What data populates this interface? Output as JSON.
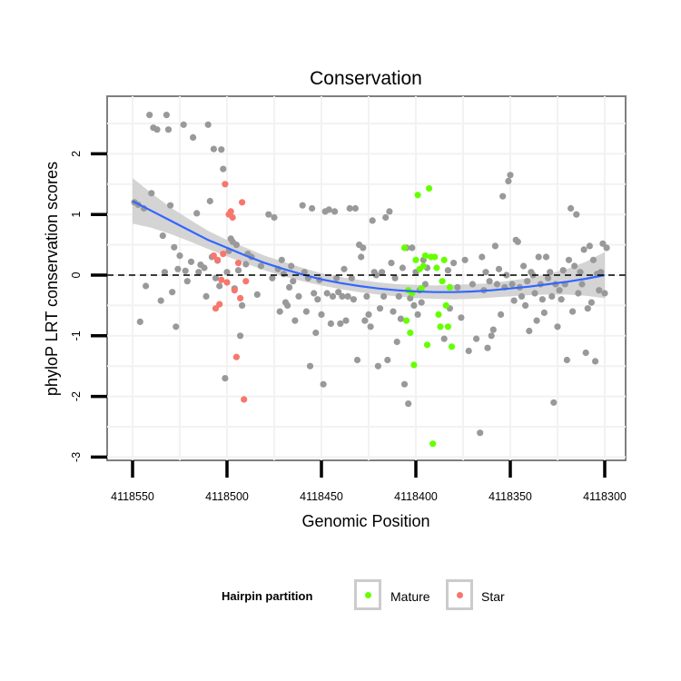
{
  "chart_data": {
    "type": "scatter",
    "title": "Conservation",
    "xlabel": "Genomic Position",
    "ylabel": "phyloP LRT conservation scores",
    "x_reversed": true,
    "xlim": [
      4118300,
      4118550
    ],
    "ylim": [
      -3,
      2.8
    ],
    "x_ticks": [
      4118550,
      4118500,
      4118450,
      4118400,
      4118350,
      4118300
    ],
    "x_tick_labels": [
      "4118550",
      "4118500",
      "4118450",
      "4118400",
      "4118350",
      "4118300"
    ],
    "y_ticks": [
      2,
      1,
      0,
      -1,
      -2,
      -3
    ],
    "y_tick_labels": [
      "2",
      "1",
      "0",
      "-1",
      "-2",
      "-3"
    ],
    "reference_line": {
      "y": 0,
      "style": "dashed"
    },
    "legend": {
      "title": "Hairpin partition",
      "entries": [
        {
          "label": "Mature",
          "color": "#66ff00"
        },
        {
          "label": "Star",
          "color": "#f8766d"
        }
      ]
    },
    "colors": {
      "other": "#999999",
      "mature": "#66ff00",
      "star": "#f8766d",
      "smooth": "#3366ff",
      "band": "#cccccc"
    },
    "smooth": {
      "x": [
        4118550,
        4118540,
        4118530,
        4118520,
        4118510,
        4118500,
        4118490,
        4118480,
        4118470,
        4118460,
        4118450,
        4118440,
        4118430,
        4118420,
        4118410,
        4118400,
        4118390,
        4118380,
        4118370,
        4118360,
        4118350,
        4118340,
        4118330,
        4118320,
        4118310,
        4118300
      ],
      "y": [
        1.22,
        1.06,
        0.9,
        0.74,
        0.58,
        0.45,
        0.32,
        0.2,
        0.1,
        0.01,
        -0.07,
        -0.13,
        -0.18,
        -0.22,
        -0.25,
        -0.27,
        -0.28,
        -0.28,
        -0.27,
        -0.25,
        -0.22,
        -0.19,
        -0.15,
        -0.11,
        -0.06,
        0.0
      ],
      "lower": [
        0.85,
        0.78,
        0.68,
        0.56,
        0.43,
        0.31,
        0.19,
        0.08,
        -0.02,
        -0.1,
        -0.17,
        -0.23,
        -0.28,
        -0.32,
        -0.35,
        -0.38,
        -0.39,
        -0.4,
        -0.39,
        -0.37,
        -0.35,
        -0.33,
        -0.32,
        -0.32,
        -0.34,
        -0.38
      ],
      "upper": [
        1.6,
        1.35,
        1.12,
        0.92,
        0.73,
        0.58,
        0.45,
        0.32,
        0.22,
        0.12,
        0.03,
        -0.03,
        -0.08,
        -0.12,
        -0.15,
        -0.16,
        -0.17,
        -0.16,
        -0.15,
        -0.13,
        -0.09,
        -0.05,
        0.02,
        0.1,
        0.22,
        0.38
      ]
    },
    "series": [
      {
        "name": "Other",
        "points": [
          [
            4118549,
            1.2
          ],
          [
            4118547,
            1.16
          ],
          [
            4118546,
            -0.77
          ],
          [
            4118544,
            1.1
          ],
          [
            4118543,
            -0.18
          ],
          [
            4118541,
            2.64
          ],
          [
            4118540,
            1.35
          ],
          [
            4118539,
            2.43
          ],
          [
            4118537,
            2.4
          ],
          [
            4118535,
            -0.42
          ],
          [
            4118534,
            0.65
          ],
          [
            4118533,
            0.05
          ],
          [
            4118532,
            2.64
          ],
          [
            4118531,
            2.4
          ],
          [
            4118530,
            1.15
          ],
          [
            4118529,
            -0.28
          ],
          [
            4118528,
            0.46
          ],
          [
            4118527,
            -0.85
          ],
          [
            4118526,
            0.1
          ],
          [
            4118525,
            0.32
          ],
          [
            4118523,
            2.48
          ],
          [
            4118522,
            0.07
          ],
          [
            4118521,
            -0.1
          ],
          [
            4118519,
            0.22
          ],
          [
            4118518,
            2.27
          ],
          [
            4118516,
            1.02
          ],
          [
            4118515,
            0.05
          ],
          [
            4118514,
            0.17
          ],
          [
            4118512,
            0.12
          ],
          [
            4118511,
            -0.35
          ],
          [
            4118510,
            2.48
          ],
          [
            4118509,
            1.22
          ],
          [
            4118508,
            0.3
          ],
          [
            4118507,
            2.08
          ],
          [
            4118506,
            -0.05
          ],
          [
            4118505,
            0.24
          ],
          [
            4118504,
            -0.18
          ],
          [
            4118503,
            2.07
          ],
          [
            4118502,
            1.75
          ],
          [
            4118501,
            -1.7
          ],
          [
            4118500,
            0.05
          ],
          [
            4118499,
            0.4
          ],
          [
            4118498,
            0.6
          ],
          [
            4118497,
            0.55
          ],
          [
            4118496,
            -0.22
          ],
          [
            4118495,
            0.5
          ],
          [
            4118494,
            0.08
          ],
          [
            4118493,
            -1.0
          ],
          [
            4118492,
            -0.5
          ],
          [
            4118490,
            0.18
          ],
          [
            4118489,
            0.35
          ],
          [
            4118487,
            0.3
          ],
          [
            4118484,
            -0.32
          ],
          [
            4118482,
            0.15
          ],
          [
            4118478,
            1.0
          ],
          [
            4118476,
            -0.05
          ],
          [
            4118475,
            0.95
          ],
          [
            4118473,
            0.1
          ],
          [
            4118472,
            -0.6
          ],
          [
            4118471,
            0.25
          ],
          [
            4118470,
            0.02
          ],
          [
            4118469,
            -0.45
          ],
          [
            4118468,
            -0.5
          ],
          [
            4118467,
            -0.2
          ],
          [
            4118466,
            0.15
          ],
          [
            4118465,
            -0.1
          ],
          [
            4118464,
            -0.75
          ],
          [
            4118462,
            -0.35
          ],
          [
            4118460,
            1.15
          ],
          [
            4118459,
            0.05
          ],
          [
            4118458,
            -0.6
          ],
          [
            4118457,
            -0.05
          ],
          [
            4118456,
            -1.5
          ],
          [
            4118455,
            1.1
          ],
          [
            4118454,
            -0.3
          ],
          [
            4118453,
            -0.95
          ],
          [
            4118452,
            -0.4
          ],
          [
            4118451,
            -0.08
          ],
          [
            4118450,
            -0.65
          ],
          [
            4118449,
            -1.8
          ],
          [
            4118448,
            1.05
          ],
          [
            4118447,
            -0.3
          ],
          [
            4118446,
            1.08
          ],
          [
            4118445,
            -0.8
          ],
          [
            4118444,
            -0.35
          ],
          [
            4118443,
            1.05
          ],
          [
            4118442,
            -0.05
          ],
          [
            4118441,
            -0.28
          ],
          [
            4118440,
            -0.8
          ],
          [
            4118439,
            -0.35
          ],
          [
            4118438,
            0.1
          ],
          [
            4118437,
            -0.75
          ],
          [
            4118436,
            -0.35
          ],
          [
            4118435,
            1.1
          ],
          [
            4118434,
            -0.05
          ],
          [
            4118433,
            -0.4
          ],
          [
            4118432,
            1.1
          ],
          [
            4118431,
            -1.4
          ],
          [
            4118430,
            0.5
          ],
          [
            4118429,
            0.3
          ],
          [
            4118428,
            0.45
          ],
          [
            4118427,
            -0.75
          ],
          [
            4118426,
            -0.35
          ],
          [
            4118425,
            -0.65
          ],
          [
            4118424,
            -0.85
          ],
          [
            4118423,
            0.9
          ],
          [
            4118422,
            0.05
          ],
          [
            4118421,
            0.0
          ],
          [
            4118420,
            -1.5
          ],
          [
            4118419,
            -0.55
          ],
          [
            4118418,
            0.05
          ],
          [
            4118417,
            -0.35
          ],
          [
            4118416,
            0.95
          ],
          [
            4118415,
            -1.4
          ],
          [
            4118414,
            1.05
          ],
          [
            4118413,
            0.2
          ],
          [
            4118412,
            -0.6
          ],
          [
            4118411,
            -0.05
          ],
          [
            4118410,
            -1.1
          ],
          [
            4118409,
            -0.35
          ],
          [
            4118408,
            -0.72
          ],
          [
            4118407,
            0.12
          ],
          [
            4118406,
            -1.8
          ],
          [
            4118405,
            0.45
          ],
          [
            4118404,
            -2.12
          ],
          [
            4118403,
            -0.38
          ],
          [
            4118402,
            0.45
          ],
          [
            4118401,
            -0.5
          ],
          [
            4118400,
            0.05
          ],
          [
            4118399,
            -0.65
          ],
          [
            4118398,
            -0.25
          ],
          [
            4118397,
            -0.45
          ],
          [
            4118396,
            0.25
          ],
          [
            4118395,
            -0.15
          ],
          [
            4118394,
            0.12
          ],
          [
            4118385,
            -1.05
          ],
          [
            4118383,
            0.08
          ],
          [
            4118382,
            -0.55
          ],
          [
            4118380,
            0.2
          ],
          [
            4118378,
            -0.2
          ],
          [
            4118376,
            -0.7
          ],
          [
            4118374,
            0.25
          ],
          [
            4118372,
            -1.25
          ],
          [
            4118370,
            -0.15
          ],
          [
            4118368,
            -1.05
          ],
          [
            4118366,
            -2.6
          ],
          [
            4118365,
            0.3
          ],
          [
            4118364,
            -0.25
          ],
          [
            4118363,
            0.05
          ],
          [
            4118362,
            -1.2
          ],
          [
            4118361,
            -0.1
          ],
          [
            4118360,
            -1.0
          ],
          [
            4118359,
            -0.9
          ],
          [
            4118358,
            0.48
          ],
          [
            4118357,
            -0.15
          ],
          [
            4118356,
            0.1
          ],
          [
            4118355,
            -0.65
          ],
          [
            4118354,
            1.3
          ],
          [
            4118353,
            -0.2
          ],
          [
            4118352,
            0.0
          ],
          [
            4118351,
            1.55
          ],
          [
            4118350,
            1.65
          ],
          [
            4118349,
            -0.15
          ],
          [
            4118348,
            -0.42
          ],
          [
            4118347,
            0.58
          ],
          [
            4118346,
            0.55
          ],
          [
            4118345,
            -0.2
          ],
          [
            4118344,
            -0.35
          ],
          [
            4118343,
            0.15
          ],
          [
            4118342,
            -0.5
          ],
          [
            4118341,
            -0.1
          ],
          [
            4118340,
            -0.92
          ],
          [
            4118339,
            0.05
          ],
          [
            4118338,
            0.0
          ],
          [
            4118337,
            -0.3
          ],
          [
            4118336,
            -0.75
          ],
          [
            4118335,
            0.3
          ],
          [
            4118334,
            -0.15
          ],
          [
            4118333,
            -0.4
          ],
          [
            4118332,
            -0.62
          ],
          [
            4118331,
            0.3
          ],
          [
            4118330,
            -0.05
          ],
          [
            4118329,
            0.05
          ],
          [
            4118328,
            -0.35
          ],
          [
            4118327,
            -2.1
          ],
          [
            4118326,
            -0.15
          ],
          [
            4118325,
            -0.85
          ],
          [
            4118324,
            -0.25
          ],
          [
            4118323,
            -0.4
          ],
          [
            4118322,
            0.08
          ],
          [
            4118321,
            -0.15
          ],
          [
            4118320,
            -1.4
          ],
          [
            4118319,
            0.25
          ],
          [
            4118318,
            1.1
          ],
          [
            4118317,
            -0.6
          ],
          [
            4118316,
            0.15
          ],
          [
            4118315,
            1.0
          ],
          [
            4118314,
            -0.3
          ],
          [
            4118313,
            0.05
          ],
          [
            4118312,
            -0.15
          ],
          [
            4118311,
            0.42
          ],
          [
            4118310,
            -1.28
          ],
          [
            4118309,
            -0.55
          ],
          [
            4118308,
            0.48
          ],
          [
            4118307,
            -0.45
          ],
          [
            4118306,
            0.25
          ],
          [
            4118305,
            -1.42
          ],
          [
            4118304,
            0.02
          ],
          [
            4118303,
            -0.25
          ],
          [
            4118302,
            0.05
          ],
          [
            4118301,
            0.52
          ],
          [
            4118300,
            -0.3
          ],
          [
            4118299,
            0.45
          ]
        ]
      },
      {
        "name": "Mature",
        "points": [
          [
            4118406,
            0.45
          ],
          [
            4118405,
            -0.75
          ],
          [
            4118404,
            -0.25
          ],
          [
            4118403,
            -0.95
          ],
          [
            4118402,
            -0.3
          ],
          [
            4118401,
            -1.48
          ],
          [
            4118400,
            0.25
          ],
          [
            4118399,
            1.32
          ],
          [
            4118398,
            0.1
          ],
          [
            4118397,
            -0.22
          ],
          [
            4118396,
            0.15
          ],
          [
            4118395,
            0.32
          ],
          [
            4118394,
            -1.15
          ],
          [
            4118393,
            1.43
          ],
          [
            4118392,
            0.3
          ],
          [
            4118391,
            -2.78
          ],
          [
            4118390,
            0.3
          ],
          [
            4118389,
            0.12
          ],
          [
            4118388,
            -0.65
          ],
          [
            4118387,
            -0.85
          ],
          [
            4118386,
            -0.1
          ],
          [
            4118385,
            0.25
          ],
          [
            4118384,
            -0.5
          ],
          [
            4118383,
            -0.85
          ],
          [
            4118382,
            -0.2
          ],
          [
            4118381,
            -1.18
          ]
        ]
      },
      {
        "name": "Star",
        "points": [
          [
            4118507,
            0.32
          ],
          [
            4118506,
            -0.55
          ],
          [
            4118505,
            0.25
          ],
          [
            4118504,
            -0.48
          ],
          [
            4118503,
            -0.08
          ],
          [
            4118502,
            0.35
          ],
          [
            4118501,
            1.5
          ],
          [
            4118500,
            -0.12
          ],
          [
            4118499,
            1.0
          ],
          [
            4118498,
            1.05
          ],
          [
            4118497,
            0.95
          ],
          [
            4118496,
            -0.25
          ],
          [
            4118495,
            -1.35
          ],
          [
            4118494,
            0.2
          ],
          [
            4118493,
            -0.38
          ],
          [
            4118492,
            1.2
          ],
          [
            4118491,
            -2.05
          ],
          [
            4118490,
            -0.1
          ]
        ]
      }
    ]
  }
}
